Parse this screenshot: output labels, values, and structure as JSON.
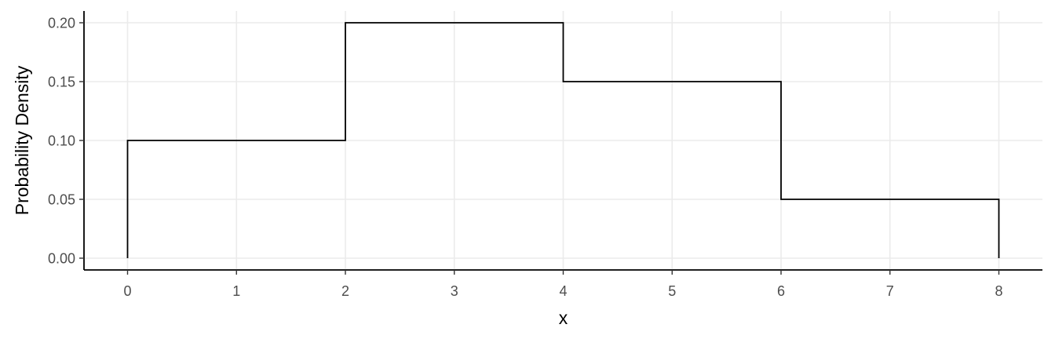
{
  "chart_data": {
    "type": "line",
    "line_shape": "step",
    "title": "",
    "xlabel": "x",
    "ylabel": "Probability Density",
    "xlim": [
      -0.4,
      8.4
    ],
    "ylim": [
      -0.01,
      0.21
    ],
    "x_ticks": [
      0,
      1,
      2,
      3,
      4,
      5,
      6,
      7,
      8
    ],
    "y_ticks": [
      0.0,
      0.05,
      0.1,
      0.15,
      0.2
    ],
    "x_tick_labels": [
      "0",
      "1",
      "2",
      "3",
      "4",
      "5",
      "6",
      "7",
      "8"
    ],
    "y_tick_labels": [
      "0.00",
      "0.05",
      "0.10",
      "0.15",
      "0.20"
    ],
    "grid": true,
    "line_color": "#000000",
    "grid_color": "#ebebeb",
    "series": [
      {
        "points": [
          {
            "x": 0,
            "y": 0.0
          },
          {
            "x": 0,
            "y": 0.1
          },
          {
            "x": 2,
            "y": 0.1
          },
          {
            "x": 2,
            "y": 0.2
          },
          {
            "x": 4,
            "y": 0.2
          },
          {
            "x": 4,
            "y": 0.15
          },
          {
            "x": 6,
            "y": 0.15
          },
          {
            "x": 6,
            "y": 0.05
          },
          {
            "x": 8,
            "y": 0.05
          },
          {
            "x": 8,
            "y": 0.0
          }
        ]
      }
    ]
  }
}
